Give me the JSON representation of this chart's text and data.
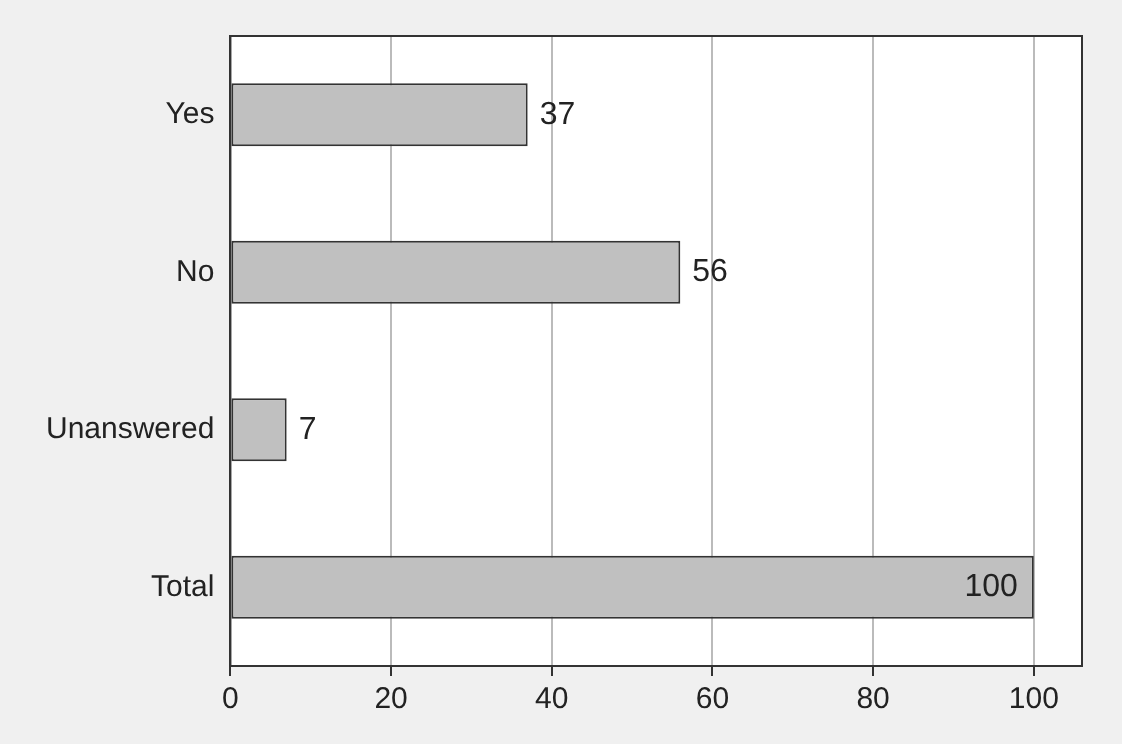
{
  "chart_data": {
    "type": "bar",
    "orientation": "horizontal",
    "categories": [
      "Yes",
      "No",
      "Unanswered",
      "Total"
    ],
    "values": [
      37,
      56,
      7,
      100
    ],
    "color": "#c0c0c0",
    "xlim": [
      0,
      106
    ],
    "xticks": [
      0,
      20,
      40,
      60,
      80,
      100
    ],
    "grid": "x",
    "data_labels": true,
    "legend": false
  }
}
